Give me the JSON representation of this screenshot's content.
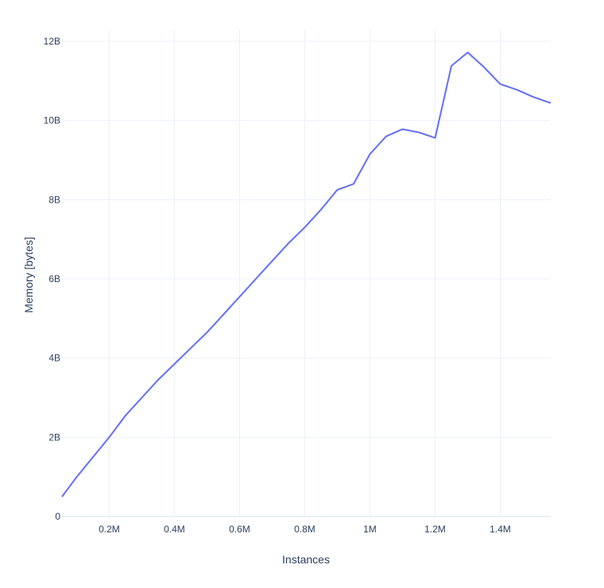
{
  "chart_data": {
    "type": "line",
    "title": "",
    "xlabel": "Instances",
    "ylabel": "Memory [bytes]",
    "xlim": [
      55000,
      1555000
    ],
    "ylim": [
      0,
      12000000000
    ],
    "grid": true,
    "x_ticks": [
      {
        "value": 200000,
        "label": "0.2M"
      },
      {
        "value": 400000,
        "label": "0.4M"
      },
      {
        "value": 600000,
        "label": "0.6M"
      },
      {
        "value": 800000,
        "label": "0.8M"
      },
      {
        "value": 1000000,
        "label": "1M"
      },
      {
        "value": 1200000,
        "label": "1.2M"
      },
      {
        "value": 1400000,
        "label": "1.4M"
      }
    ],
    "y_ticks": [
      {
        "value": 0,
        "label": "0"
      },
      {
        "value": 2000000000,
        "label": "2B"
      },
      {
        "value": 4000000000,
        "label": "4B"
      },
      {
        "value": 6000000000,
        "label": "6B"
      },
      {
        "value": 8000000000,
        "label": "8B"
      },
      {
        "value": 10000000000,
        "label": "10B"
      },
      {
        "value": 12000000000,
        "label": "12B"
      }
    ],
    "series": [
      {
        "color": "#636efa",
        "x": [
          55000,
          100000,
          150000,
          200000,
          250000,
          300000,
          350000,
          400000,
          450000,
          500000,
          550000,
          600000,
          650000,
          700000,
          750000,
          800000,
          850000,
          900000,
          950000,
          1000000,
          1050000,
          1100000,
          1150000,
          1200000,
          1250000,
          1300000,
          1350000,
          1400000,
          1450000,
          1500000,
          1555000
        ],
        "y": [
          500000000,
          1000000000,
          1500000000,
          2000000000,
          2550000000,
          3000000000,
          3450000000,
          3850000000,
          4250000000,
          4650000000,
          5100000000,
          5550000000,
          6000000000,
          6450000000,
          6900000000,
          7300000000,
          7750000000,
          8250000000,
          8400000000,
          9150000000,
          9600000000,
          9780000000,
          9700000000,
          9560000000,
          11380000000,
          11720000000,
          11350000000,
          10920000000,
          10780000000,
          10600000000,
          10440000000
        ]
      }
    ]
  }
}
